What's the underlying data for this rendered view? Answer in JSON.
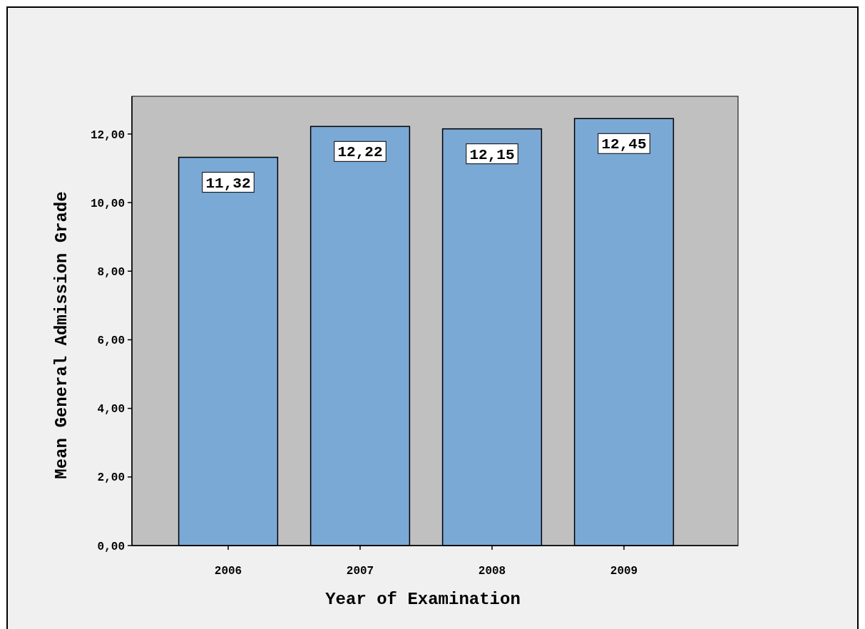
{
  "chart_data": {
    "type": "bar",
    "xlabel": "Year of Examination",
    "ylabel": "Mean General Admission Grade",
    "categories": [
      "2006",
      "2007",
      "2008",
      "2009"
    ],
    "values": [
      11.32,
      12.22,
      12.15,
      12.45
    ],
    "value_labels": [
      "11,32",
      "12,22",
      "12,15",
      "12,45"
    ],
    "color": "#7ba9d6",
    "ylim": [
      0,
      13.1
    ],
    "yticks": [
      {
        "value": 0,
        "label": "0,00"
      },
      {
        "value": 2,
        "label": "2,00"
      },
      {
        "value": 4,
        "label": "4,00"
      },
      {
        "value": 6,
        "label": "6,00"
      },
      {
        "value": 8,
        "label": "8,00"
      },
      {
        "value": 10,
        "label": "10,00"
      },
      {
        "value": 12,
        "label": "12,00"
      }
    ],
    "grid": false
  }
}
